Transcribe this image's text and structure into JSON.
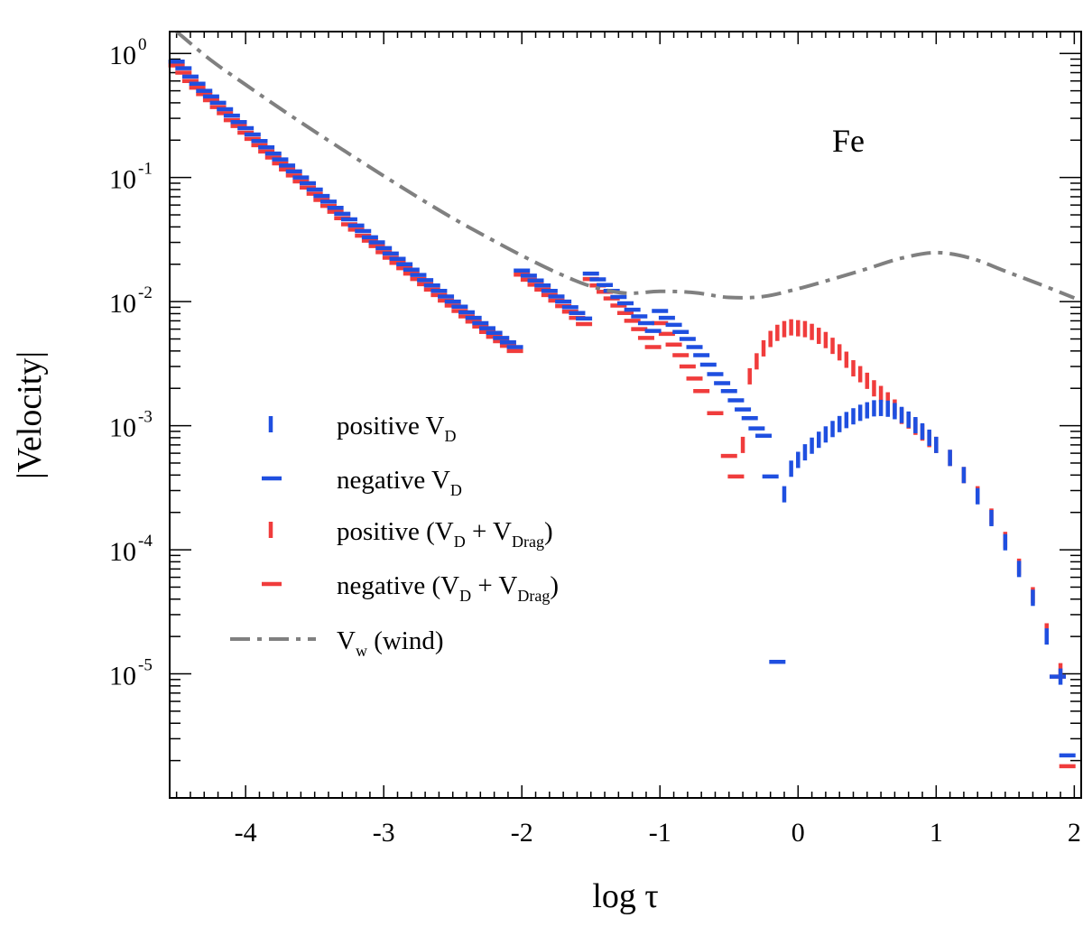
{
  "chart_data": {
    "type": "scatter",
    "title": "",
    "annotation": "Fe",
    "xlabel": "log τ",
    "ylabel": "|Velocity|",
    "xlim": [
      -4.55,
      2.05
    ],
    "ylim": [
      1e-06,
      1.5
    ],
    "yscale": "log",
    "xticks": [
      {
        "v": -4,
        "label": "-4"
      },
      {
        "v": -3,
        "label": "-3"
      },
      {
        "v": -2,
        "label": "-2"
      },
      {
        "v": -1,
        "label": "-1"
      },
      {
        "v": 0,
        "label": "0"
      },
      {
        "v": 1,
        "label": "1"
      },
      {
        "v": 2,
        "label": "2"
      }
    ],
    "yticks": [
      {
        "v": 1,
        "base": "10",
        "exp": "0"
      },
      {
        "v": 0.1,
        "base": "10",
        "exp": "-1"
      },
      {
        "v": 0.01,
        "base": "10",
        "exp": "-2"
      },
      {
        "v": 0.001,
        "base": "10",
        "exp": "-3"
      },
      {
        "v": 0.0001,
        "base": "10",
        "exp": "-4"
      },
      {
        "v": 1e-05,
        "base": "10",
        "exp": "-5"
      }
    ],
    "legend_position": "center-left",
    "legend": [
      {
        "key": "vd_pos",
        "marker": "vbar",
        "color": "#1f4fe0",
        "text": "positive  V",
        "sub": "D",
        "tail": ""
      },
      {
        "key": "vd_neg",
        "marker": "hbar",
        "color": "#1f4fe0",
        "text": "negative  V",
        "sub": "D",
        "tail": ""
      },
      {
        "key": "vdd_pos",
        "marker": "vbar",
        "color": "#f03c3c",
        "text": " positive (V",
        "sub": "D",
        "mid": " +  V",
        "sub2": "Drag",
        "tail": ")"
      },
      {
        "key": "vdd_neg",
        "marker": "hbar",
        "color": "#f03c3c",
        "text": "negative  (V",
        "sub": "D",
        "mid": " +  V",
        "sub2": "Drag",
        "tail": ")"
      },
      {
        "key": "wind",
        "marker": "dashdot",
        "color": "#808080",
        "text": "V",
        "sub": "w",
        "tail": "  (wind)"
      }
    ],
    "series": [
      {
        "name": "negative (V_D + V_Drag)",
        "color": "#f03c3c",
        "marker": "hbar",
        "x": [
          -4.5,
          -4.45,
          -4.4,
          -4.35,
          -4.3,
          -4.25,
          -4.2,
          -4.15,
          -4.1,
          -4.05,
          -4.0,
          -3.95,
          -3.9,
          -3.85,
          -3.8,
          -3.75,
          -3.7,
          -3.65,
          -3.6,
          -3.55,
          -3.5,
          -3.45,
          -3.4,
          -3.35,
          -3.3,
          -3.25,
          -3.2,
          -3.15,
          -3.1,
          -3.05,
          -3.0,
          -2.95,
          -2.9,
          -2.85,
          -2.8,
          -2.75,
          -2.7,
          -2.65,
          -2.6,
          -2.55,
          -2.5,
          -2.45,
          -2.4,
          -2.35,
          -2.3,
          -2.25,
          -2.2,
          -2.15,
          -2.1,
          -2.05,
          -2.0,
          -1.95,
          -1.9,
          -1.85,
          -1.8,
          -1.75,
          -1.7,
          -1.65,
          -1.6,
          -1.55,
          -1.5,
          -1.45,
          -1.4,
          -1.35,
          -1.3,
          -1.25,
          -1.2,
          -1.15,
          -1.1,
          -1.05,
          -1.0,
          -0.95,
          -0.9,
          -0.85,
          -0.8,
          -0.75,
          -0.7,
          -0.6,
          -0.5,
          -0.45,
          1.88,
          1.95
        ],
        "y": [
          0.8,
          0.7,
          0.6,
          0.53,
          0.47,
          0.42,
          0.37,
          0.33,
          0.29,
          0.26,
          0.23,
          0.205,
          0.182,
          0.162,
          0.145,
          0.13,
          0.116,
          0.104,
          0.093,
          0.083,
          0.074,
          0.066,
          0.059,
          0.053,
          0.047,
          0.042,
          0.038,
          0.034,
          0.031,
          0.028,
          0.025,
          0.0226,
          0.0205,
          0.0186,
          0.0168,
          0.0152,
          0.0138,
          0.0125,
          0.0113,
          0.0102,
          0.0093,
          0.0084,
          0.0076,
          0.0069,
          0.0063,
          0.0057,
          0.0052,
          0.0048,
          0.0044,
          0.004,
          0.0165,
          0.015,
          0.0137,
          0.0125,
          0.0113,
          0.0102,
          0.0092,
          0.0083,
          0.0074,
          0.0066,
          0.0152,
          0.0135,
          0.012,
          0.0106,
          0.0093,
          0.0081,
          0.007,
          0.006,
          0.0051,
          0.0043,
          0.0067,
          0.0055,
          0.0045,
          0.0037,
          0.003,
          0.0024,
          0.0019,
          0.00126,
          0.00057,
          0.00039,
          9.5e-06,
          1.8e-06
        ]
      },
      {
        "name": "negative V_D",
        "color": "#1f4fe0",
        "marker": "hbar",
        "x": [
          -4.5,
          -4.45,
          -4.4,
          -4.35,
          -4.3,
          -4.25,
          -4.2,
          -4.15,
          -4.1,
          -4.05,
          -4.0,
          -3.95,
          -3.9,
          -3.85,
          -3.8,
          -3.75,
          -3.7,
          -3.65,
          -3.6,
          -3.55,
          -3.5,
          -3.45,
          -3.4,
          -3.35,
          -3.3,
          -3.25,
          -3.2,
          -3.15,
          -3.1,
          -3.05,
          -3.0,
          -2.95,
          -2.9,
          -2.85,
          -2.8,
          -2.75,
          -2.7,
          -2.65,
          -2.6,
          -2.55,
          -2.5,
          -2.45,
          -2.4,
          -2.35,
          -2.3,
          -2.25,
          -2.2,
          -2.15,
          -2.1,
          -2.05,
          -2.0,
          -1.95,
          -1.9,
          -1.85,
          -1.8,
          -1.75,
          -1.7,
          -1.65,
          -1.6,
          -1.55,
          -1.5,
          -1.45,
          -1.4,
          -1.35,
          -1.3,
          -1.25,
          -1.2,
          -1.15,
          -1.1,
          -1.05,
          -1.0,
          -0.95,
          -0.9,
          -0.85,
          -0.8,
          -0.75,
          -0.7,
          -0.65,
          -0.6,
          -0.55,
          -0.5,
          -0.45,
          -0.4,
          -0.35,
          -0.3,
          -0.25,
          -0.2,
          -0.15,
          1.88,
          1.95
        ],
        "y": [
          0.86,
          0.76,
          0.65,
          0.57,
          0.5,
          0.45,
          0.4,
          0.355,
          0.315,
          0.28,
          0.25,
          0.222,
          0.197,
          0.175,
          0.156,
          0.14,
          0.125,
          0.112,
          0.1,
          0.09,
          0.08,
          0.071,
          0.064,
          0.057,
          0.051,
          0.046,
          0.041,
          0.037,
          0.033,
          0.03,
          0.027,
          0.0244,
          0.0221,
          0.02,
          0.0181,
          0.0164,
          0.0149,
          0.0135,
          0.0122,
          0.011,
          0.01,
          0.0091,
          0.0082,
          0.0074,
          0.0067,
          0.0061,
          0.0056,
          0.0051,
          0.0047,
          0.0043,
          0.0178,
          0.0162,
          0.0148,
          0.0135,
          0.0122,
          0.011,
          0.01,
          0.009,
          0.0081,
          0.0073,
          0.0168,
          0.0151,
          0.0136,
          0.0122,
          0.0109,
          0.0097,
          0.0086,
          0.0076,
          0.0067,
          0.0058,
          0.0084,
          0.0074,
          0.0065,
          0.0057,
          0.005,
          0.0043,
          0.0037,
          0.0031,
          0.0026,
          0.0022,
          0.0019,
          0.0016,
          0.00135,
          0.00115,
          0.00095,
          0.00083,
          0.00039,
          1.25e-05,
          9.5e-06,
          2.2e-06
        ]
      },
      {
        "name": "V_w (wind)",
        "color": "#808080",
        "marker": "dashdot",
        "x": [
          -4.5,
          -4.25,
          -4.0,
          -3.75,
          -3.5,
          -3.25,
          -3.0,
          -2.75,
          -2.5,
          -2.25,
          -2.0,
          -1.75,
          -1.5,
          -1.25,
          -1.0,
          -0.75,
          -0.5,
          -0.25,
          0.0,
          0.25,
          0.5,
          0.75,
          1.0,
          1.25,
          1.5,
          1.75,
          2.0
        ],
        "y": [
          1.5,
          0.88,
          0.56,
          0.36,
          0.235,
          0.155,
          0.103,
          0.069,
          0.047,
          0.033,
          0.0235,
          0.0172,
          0.0133,
          0.0117,
          0.0121,
          0.0118,
          0.0108,
          0.011,
          0.0127,
          0.0152,
          0.0184,
          0.0224,
          0.0248,
          0.0224,
          0.0176,
          0.0138,
          0.0107
        ]
      },
      {
        "name": "positive (V_D + V_Drag)",
        "color": "#f03c3c",
        "marker": "vbar",
        "x": [
          -0.4,
          -0.35,
          -0.3,
          -0.25,
          -0.2,
          -0.15,
          -0.1,
          -0.05,
          0.0,
          0.05,
          0.1,
          0.15,
          0.2,
          0.25,
          0.3,
          0.35,
          0.4,
          0.45,
          0.5,
          0.55,
          0.6,
          0.65,
          0.7,
          0.75,
          0.8,
          0.85,
          0.9,
          0.95,
          1.0,
          1.1,
          1.2,
          1.3,
          1.4,
          1.5,
          1.6,
          1.7,
          1.8,
          1.9
        ],
        "y": [
          0.0007,
          0.0025,
          0.0033,
          0.0042,
          0.005,
          0.0056,
          0.006,
          0.0062,
          0.0061,
          0.006,
          0.0057,
          0.0053,
          0.0049,
          0.0044,
          0.0039,
          0.0034,
          0.0029,
          0.0026,
          0.0023,
          0.002,
          0.0018,
          0.0016,
          0.0014,
          0.0012,
          0.0011,
          0.00098,
          0.00088,
          0.00078,
          0.0007,
          0.00055,
          0.0004,
          0.00028,
          0.000185,
          0.00012,
          7.3e-05,
          4.3e-05,
          2.2e-05,
          1.05e-05
        ]
      },
      {
        "name": "positive V_D",
        "color": "#1f4fe0",
        "marker": "vbar",
        "x": [
          -0.1,
          -0.05,
          0.0,
          0.05,
          0.1,
          0.15,
          0.2,
          0.25,
          0.3,
          0.35,
          0.4,
          0.45,
          0.5,
          0.55,
          0.6,
          0.65,
          0.7,
          0.75,
          0.8,
          0.85,
          0.9,
          0.95,
          1.0,
          1.1,
          1.2,
          1.3,
          1.4,
          1.5,
          1.6,
          1.7,
          1.8,
          1.9
        ],
        "y": [
          0.00028,
          0.00045,
          0.00053,
          0.00061,
          0.00069,
          0.00077,
          0.00085,
          0.00094,
          0.00103,
          0.00111,
          0.00119,
          0.00127,
          0.00133,
          0.00138,
          0.00139,
          0.00137,
          0.00131,
          0.00122,
          0.00112,
          0.00101,
          0.0009,
          0.0008,
          0.0007,
          0.00055,
          0.0004,
          0.00027,
          0.00018,
          0.000115,
          7e-05,
          4.1e-05,
          2e-05,
          9.5e-06
        ]
      }
    ]
  }
}
